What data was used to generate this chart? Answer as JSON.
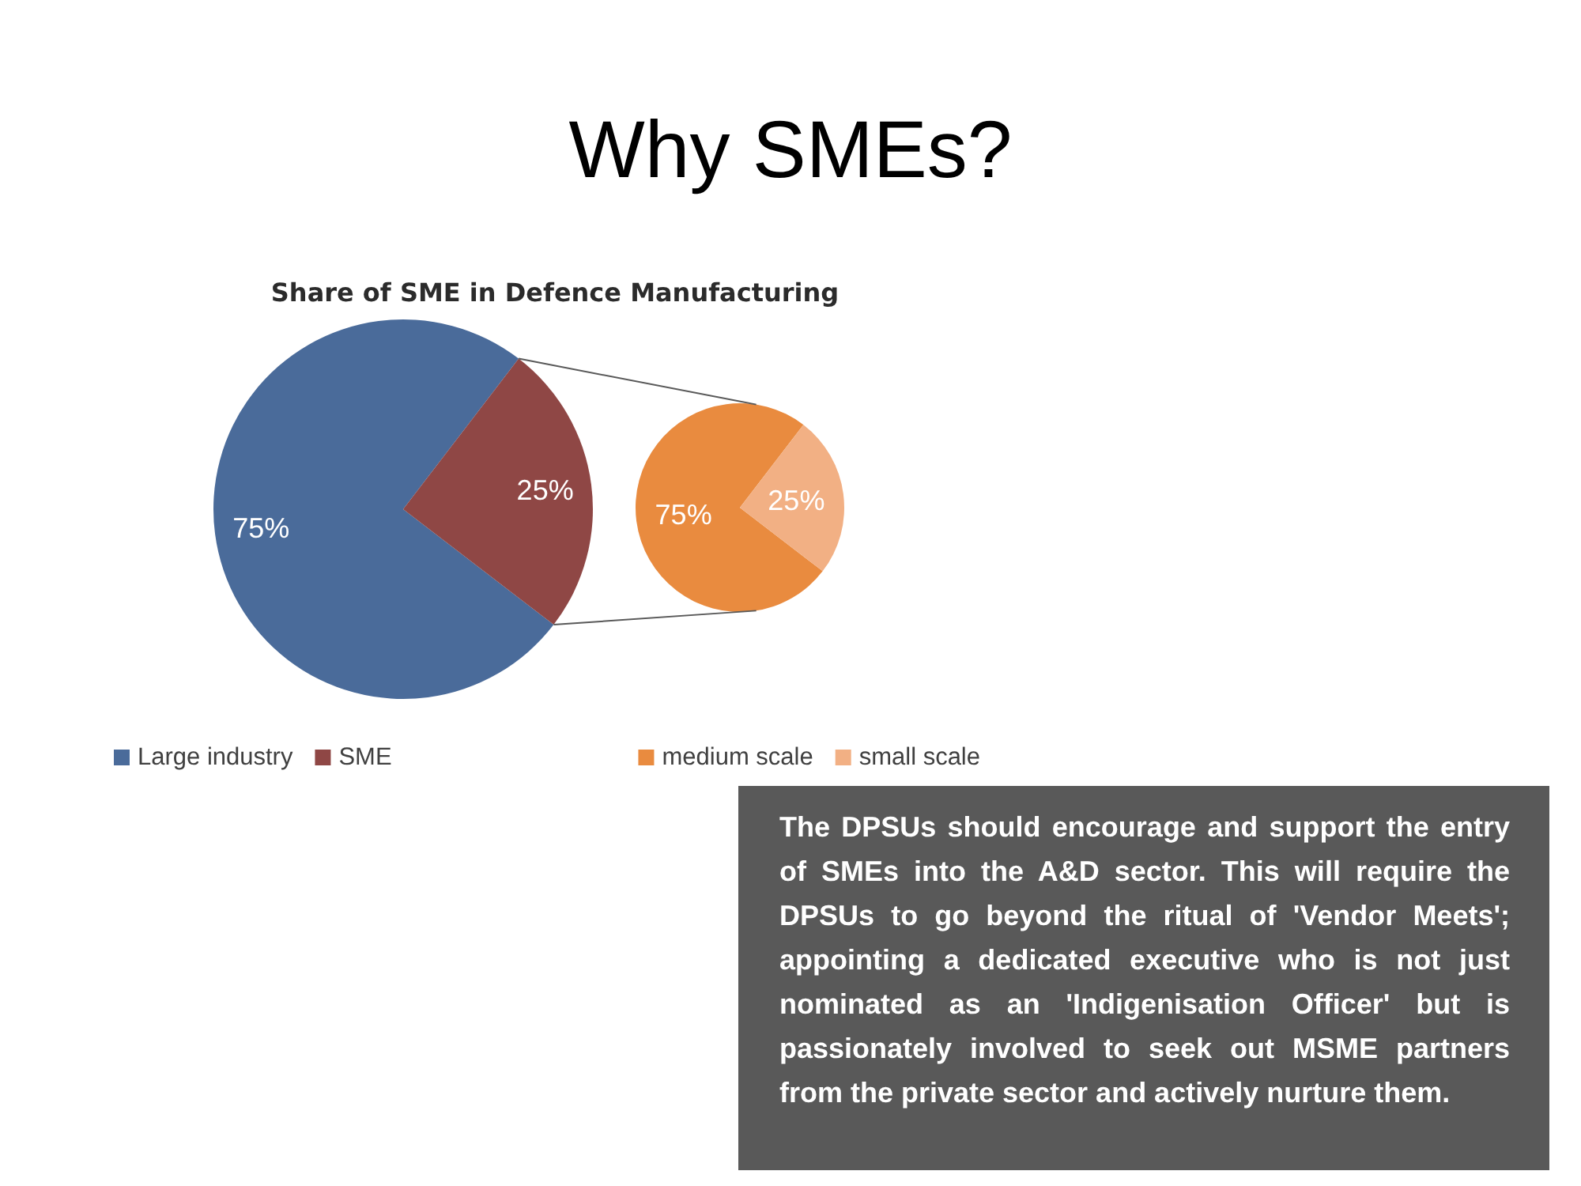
{
  "chart_data": [
    {
      "type": "pie",
      "title": "Why SMEs?",
      "subtitle": "Share of SME in Defence Manufacturing",
      "categories": [
        "Large industry",
        "SME"
      ],
      "values": [
        75,
        25
      ],
      "colors": [
        "#4a6b9a",
        "#8f4745"
      ],
      "value_labels": [
        "75%",
        "25%"
      ],
      "legend": "bottom left",
      "annotations": [
        "The DPSUs should encourage and support the entry of SMEs into the A&D sector. This will require the DPSUs to go beyond the ritual of 'Vendor Meets'; appointing a dedicated executive who is not just nominated as an 'Indigenisation Officer' but is passionately involved to seek out MSME partners from the private sector and actively nurture them."
      ]
    },
    {
      "type": "pie",
      "categories": [
        "medium scale",
        "small scale"
      ],
      "values": [
        75,
        25
      ],
      "colors": [
        "#e98b3f",
        "#f2b084"
      ],
      "value_labels": [
        "75%",
        "25%"
      ],
      "legend": "bottom right"
    }
  ]
}
